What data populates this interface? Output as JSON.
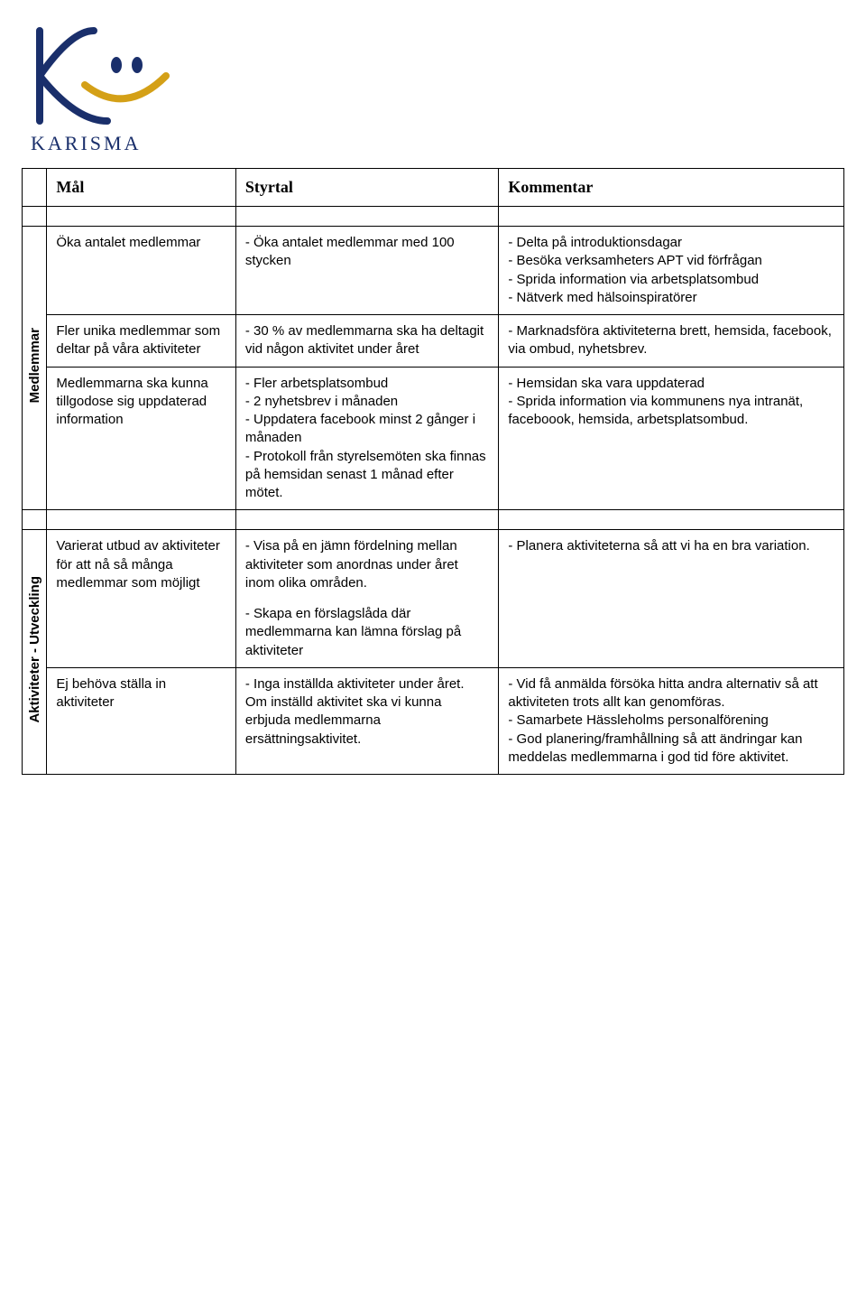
{
  "logo": {
    "text": "KARISMA",
    "stroke_color": "#1a2f6b",
    "dot_color": "#1a2f6b",
    "accent_color": "#d4a017",
    "text_color": "#1a2f6b"
  },
  "headers": {
    "mal": "Mål",
    "styrtal": "Styrtal",
    "kommentar": "Kommentar"
  },
  "sections": [
    {
      "label": "Medlemmar",
      "rows": [
        {
          "mal": "Öka antalet medlemmar",
          "styrtal": "- Öka antalet medlemmar med 100 stycken",
          "kommentar": "- Delta på introduktionsdagar\n- Besöka verksamheters APT vid förfrågan\n- Sprida information via arbetsplatsombud\n- Nätverk med hälsoinspiratörer"
        },
        {
          "mal": "Fler unika medlemmar som deltar på våra aktiviteter",
          "styrtal": "- 30 % av medlemmarna ska ha deltagit vid någon aktivitet under året",
          "kommentar": "- Marknadsföra aktiviteterna brett, hemsida, facebook, via ombud, nyhetsbrev."
        },
        {
          "mal": "Medlemmarna ska kunna tillgodose sig uppdaterad information",
          "styrtal": "- Fler arbetsplatsombud\n- 2 nyhetsbrev i månaden\n- Uppdatera facebook minst 2 gånger i månaden\n- Protokoll från styrelsemöten ska finnas på hemsidan senast 1 månad efter mötet.",
          "kommentar": "- Hemsidan ska vara uppdaterad\n- Sprida information via kommunens nya intranät, faceboook, hemsida, arbetsplatsombud."
        }
      ]
    },
    {
      "label": "Aktiviteter - Utveckling",
      "rows": [
        {
          "mal": "Varierat utbud av aktiviteter för att nå så många medlemmar som möjligt",
          "styrtal_paras": [
            "- Visa på en jämn fördelning mellan aktiviteter som anordnas under året inom olika områden.",
            "- Skapa en förslagslåda där medlemmarna kan lämna förslag på aktiviteter"
          ],
          "kommentar": "- Planera aktiviteterna så att vi ha en bra variation."
        },
        {
          "mal": "Ej behöva ställa in aktiviteter",
          "styrtal": "- Inga inställda aktiviteter under året. Om inställd aktivitet ska vi kunna erbjuda medlemmarna ersättningsaktivitet.",
          "kommentar": "- Vid få anmälda försöka hitta andra alternativ så att aktiviteten trots allt kan genomföras.\n- Samarbete Hässleholms personalförening\n- God planering/framhållning så att ändringar kan meddelas medlemmarna i god tid före aktivitet."
        }
      ]
    }
  ]
}
